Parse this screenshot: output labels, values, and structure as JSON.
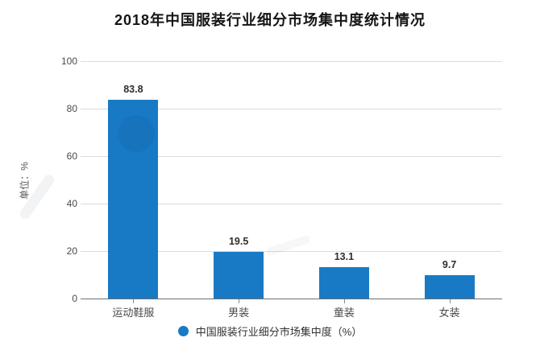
{
  "chart_data": {
    "type": "bar",
    "title": "2018年中国服装行业细分市场集中度统计情况",
    "ylabel": "单位：%",
    "xlabel": "",
    "categories": [
      "运动鞋服",
      "男装",
      "童装",
      "女装"
    ],
    "values": [
      83.8,
      19.5,
      13.1,
      9.7
    ],
    "value_labels": [
      "83.8",
      "19.5",
      "13.1",
      "9.7"
    ],
    "ylim": [
      0,
      100
    ],
    "yticks": [
      0,
      20,
      40,
      60,
      80,
      100
    ],
    "grid": true,
    "legend": {
      "label": "中国服装行业细分市场集中度（%）",
      "marker": "circle",
      "position": "bottom"
    },
    "colors": {
      "bar": "#187ac4",
      "grid": "#dcdcdc",
      "axis": "#707070",
      "tick": "#8a8a8a",
      "title": "#151515",
      "tick_label": "#4a4a4a",
      "value_label": "#2e2e2e",
      "legend_text": "#333333",
      "background": "#ffffff"
    }
  }
}
